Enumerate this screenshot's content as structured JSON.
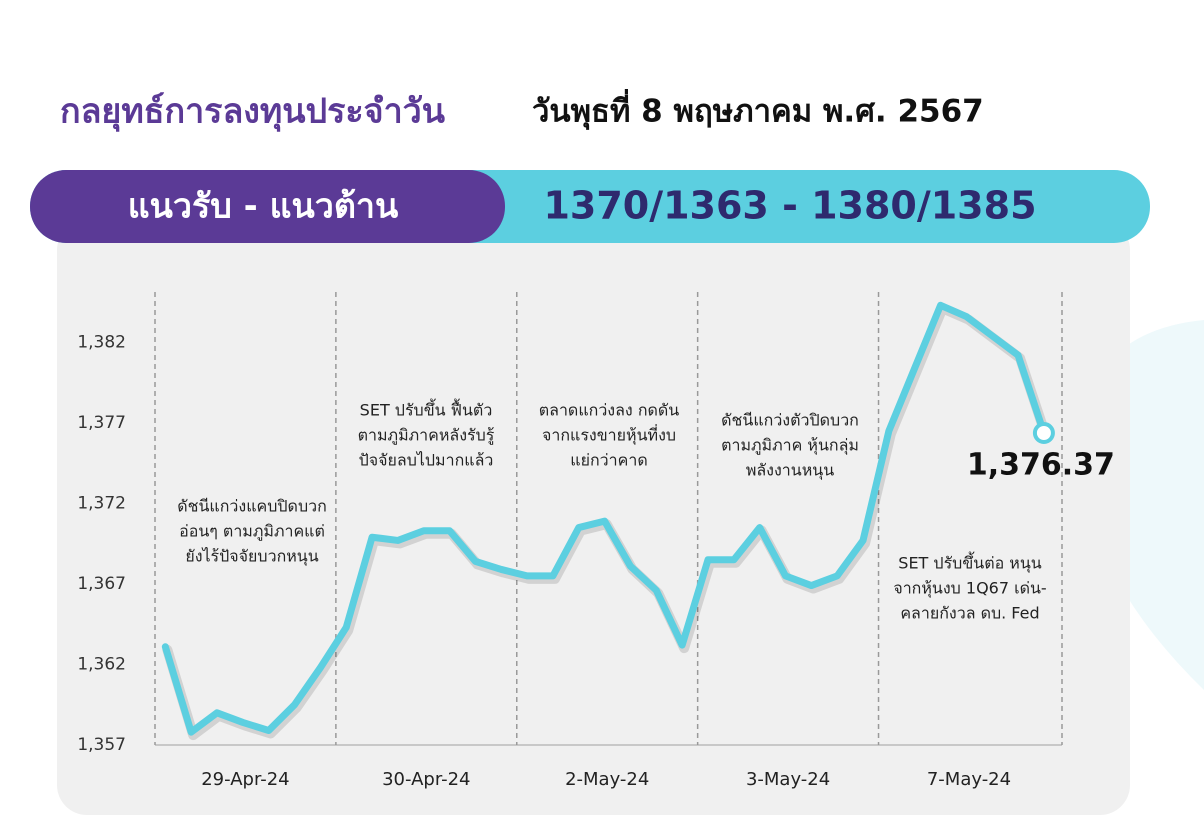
{
  "header": {
    "title": "กลยุทธ์การลงทุนประจำวัน",
    "date": "วันพุธที่ 8 พฤษภาคม พ.ศ. 2567",
    "range_label": "แนวรับ - แนวต้าน",
    "range_value": "1370/1363 - 1380/1385"
  },
  "chart_data": {
    "type": "line",
    "x": [
      0,
      1,
      2,
      3,
      4,
      5,
      6,
      7,
      8,
      9,
      10,
      11,
      12,
      13,
      14,
      15,
      16,
      17,
      18,
      19,
      20,
      21,
      22,
      23,
      24,
      25,
      26,
      27,
      28,
      29,
      30,
      31,
      32,
      33,
      34
    ],
    "series": [
      {
        "name": "SET",
        "color": "#5ccfe0",
        "values": [
          1363.1,
          1357.8,
          1359.0,
          1358.4,
          1357.9,
          1359.5,
          1361.8,
          1364.3,
          1369.9,
          1369.7,
          1370.3,
          1370.3,
          1368.4,
          1367.9,
          1367.5,
          1367.5,
          1370.5,
          1370.9,
          1368.1,
          1366.6,
          1363.2,
          1368.5,
          1368.5,
          1370.5,
          1367.5,
          1366.9,
          1367.5,
          1369.7,
          1376.5,
          1380.4,
          1384.3,
          1383.6,
          1382.4,
          1381.2,
          1376.37
        ],
        "value_labels": [
          null,
          null,
          null,
          null,
          null,
          null,
          null,
          null,
          null,
          null,
          null,
          null,
          null,
          null,
          null,
          null,
          null,
          null,
          null,
          null,
          null,
          null,
          null,
          null,
          null,
          null,
          null,
          null,
          null,
          null,
          null,
          null,
          null,
          null,
          "1,376.37"
        ]
      }
    ],
    "xlim": [
      -0.4,
      34.7
    ],
    "xticks": [
      {
        "value": 3.1,
        "label": "29-Apr-24"
      },
      {
        "value": 10.1,
        "label": "30-Apr-24"
      },
      {
        "value": 17.1,
        "label": "2-May-24"
      },
      {
        "value": 24.1,
        "label": "3-May-24"
      },
      {
        "value": 31.1,
        "label": "7-May-24"
      }
    ],
    "ylim": [
      1357,
      1385
    ],
    "yticks": [
      {
        "value": 1357,
        "label": "1,357"
      },
      {
        "value": 1362,
        "label": "1,362"
      },
      {
        "value": 1367,
        "label": "1,367"
      },
      {
        "value": 1372,
        "label": "1,372"
      },
      {
        "value": 1377,
        "label": "1,377"
      },
      {
        "value": 1382,
        "label": "1,382"
      }
    ],
    "annotations": [
      [
        "ดัชนีแกว่งแคบปิดบวก",
        "อ่อนๆ ตามภูมิภาคแต่",
        "ยังไร้ปัจจัยบวกหนุน"
      ],
      [
        "SET ปรับขึ้น ฟื้นตัว",
        "ตามภูมิภาคหลังรับรู้",
        "ปัจจัยลบไปมากแล้ว"
      ],
      [
        "ตลาดแกว่งลง กดดัน",
        "จากแรงขายหุ้นที่งบ",
        "แย่กว่าคาด"
      ],
      [
        "ดัชนีแกว่งตัวปิดบวก",
        "ตามภูมิภาค หุ้นกลุ่ม",
        "พลังงานหนุน"
      ],
      [
        "SET ปรับขึ้นต่อ หนุน",
        "จากหุ้นงบ 1Q67 เด่น-",
        "คลายกังวล ดบ. Fed"
      ]
    ]
  }
}
